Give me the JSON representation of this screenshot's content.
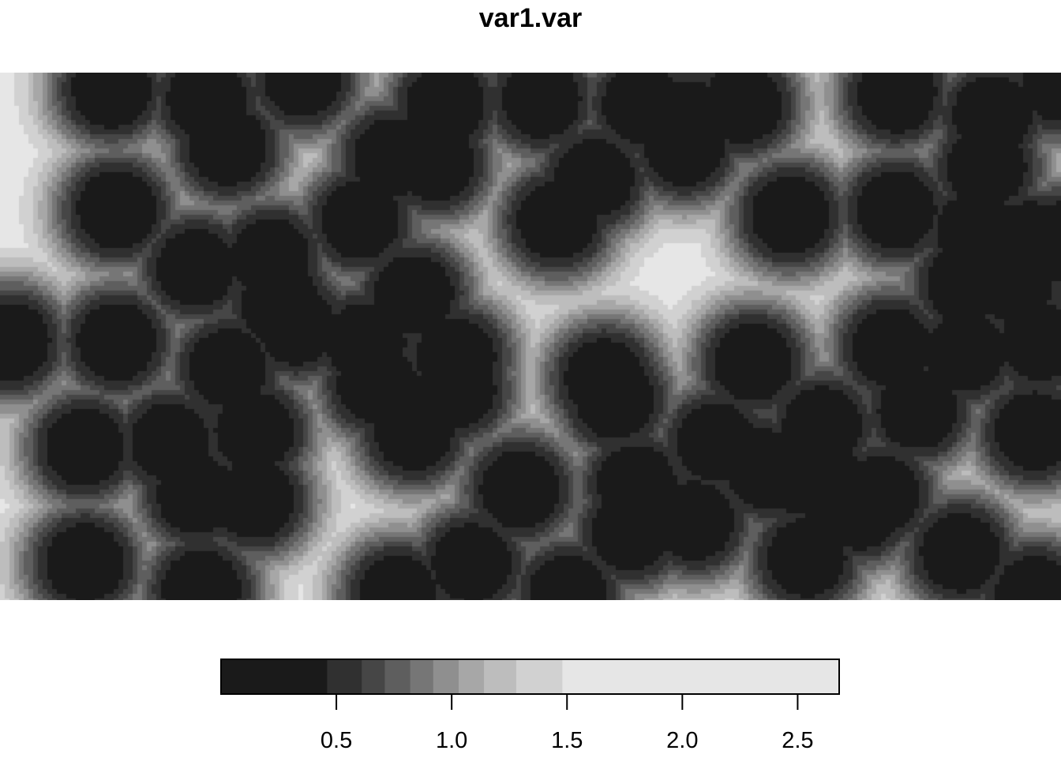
{
  "chart_data": {
    "type": "heatmap",
    "title": "var1.var",
    "colorbar": {
      "ticks": [
        0.5,
        1.0,
        1.5,
        2.0,
        2.5
      ],
      "tick_labels": [
        "0.5",
        "1.0",
        "1.5",
        "2.0",
        "2.5"
      ],
      "range": [
        0.0,
        2.68
      ],
      "breaks": [
        0.0,
        0.46,
        0.61,
        0.71,
        0.82,
        0.92,
        1.03,
        1.14,
        1.28,
        1.48,
        2.68
      ],
      "colors": [
        "#1a1a1a",
        "#303030",
        "#464646",
        "#5e5e5e",
        "#767676",
        "#8f8f8f",
        "#a7a7a7",
        "#bdbdbd",
        "#d1d1d1",
        "#e6e6e6"
      ],
      "position": "bottom"
    },
    "x_range": [
      0,
      100
    ],
    "y_range": [
      0,
      50
    ],
    "points": [
      [
        10.5,
        48.5
      ],
      [
        19.5,
        47.5
      ],
      [
        21.5,
        43
      ],
      [
        28.5,
        49.5
      ],
      [
        11,
        37
      ],
      [
        18.5,
        31.5
      ],
      [
        25.5,
        32.5
      ],
      [
        26.5,
        28
      ],
      [
        1,
        24.5
      ],
      [
        11,
        24.5
      ],
      [
        21.5,
        22
      ],
      [
        28,
        26
      ],
      [
        34.5,
        24.5
      ],
      [
        35.5,
        20.5
      ],
      [
        8,
        14.5
      ],
      [
        16,
        15
      ],
      [
        24,
        16
      ],
      [
        18.5,
        10
      ],
      [
        24,
        9.5
      ],
      [
        8,
        3.5
      ],
      [
        19,
        1
      ],
      [
        42,
        47
      ],
      [
        41,
        41.5
      ],
      [
        37,
        42
      ],
      [
        34,
        36
      ],
      [
        39,
        29
      ],
      [
        43,
        23
      ],
      [
        43,
        20
      ],
      [
        39,
        16
      ],
      [
        49,
        10.5
      ],
      [
        44.5,
        3.5
      ],
      [
        37.5,
        0.5
      ],
      [
        53.5,
        0.5
      ],
      [
        52.5,
        36
      ],
      [
        56,
        40
      ],
      [
        51,
        47.5
      ],
      [
        60.5,
        47
      ],
      [
        65,
        45.5
      ],
      [
        70,
        47
      ],
      [
        64.5,
        43
      ],
      [
        57,
        21
      ],
      [
        58,
        19
      ],
      [
        60,
        11
      ],
      [
        65.5,
        7.5
      ],
      [
        59.5,
        6.5
      ],
      [
        67.5,
        15
      ],
      [
        71,
        22.5
      ],
      [
        72,
        12.5
      ],
      [
        75,
        12
      ],
      [
        74.5,
        36.5
      ],
      [
        84.5,
        48
      ],
      [
        84.5,
        37
      ],
      [
        93.5,
        46
      ],
      [
        93,
        41
      ],
      [
        92,
        35
      ],
      [
        91,
        30
      ],
      [
        95.5,
        30
      ],
      [
        97,
        34
      ],
      [
        84,
        24
      ],
      [
        91,
        23.5
      ],
      [
        98,
        24.5
      ],
      [
        86.5,
        18
      ],
      [
        77.5,
        16.5
      ],
      [
        78,
        11
      ],
      [
        81,
        8.5
      ],
      [
        76,
        4
      ],
      [
        83,
        10
      ],
      [
        90.5,
        4.5
      ],
      [
        97.5,
        16
      ],
      [
        97.5,
        0.5
      ],
      [
        100,
        49
      ],
      [
        100,
        34
      ]
    ]
  }
}
